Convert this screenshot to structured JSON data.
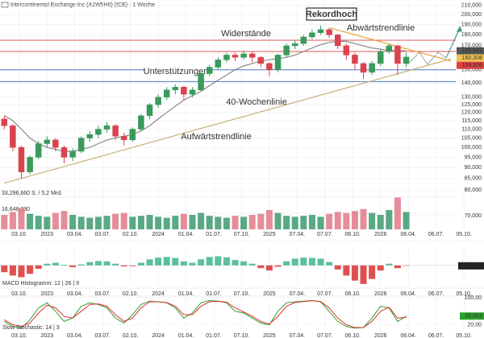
{
  "chart_data": {
    "type": "candlestick",
    "title": "Intercontinental Exchange Inc (A1W5H0) (ICE) - 1 Woche",
    "x": [
      0,
      4,
      8,
      12,
      16,
      20,
      24,
      28,
      32,
      36,
      40,
      44,
      48,
      52,
      56,
      60,
      64,
      68,
      72,
      76,
      80,
      84,
      88,
      92,
      96,
      100,
      104,
      108,
      112,
      116,
      120,
      124,
      128,
      132,
      136,
      140,
      144,
      148,
      152,
      156,
      160,
      164,
      168,
      172,
      176,
      180,
      184,
      188
    ],
    "open": [
      116000,
      112000,
      100000,
      88000,
      95000,
      102000,
      104000,
      100000,
      95000,
      98000,
      105000,
      107000,
      110000,
      112000,
      106000,
      104000,
      110000,
      118000,
      125000,
      130000,
      135000,
      137000,
      132000,
      135000,
      147000,
      152000,
      158000,
      162000,
      160000,
      163000,
      160000,
      155000,
      150000,
      162000,
      170000,
      172000,
      178000,
      182000,
      185000,
      180000,
      170000,
      162000,
      155000,
      148000,
      155000,
      165000,
      170000,
      155000
    ],
    "high": [
      118000,
      113000,
      101000,
      96000,
      103500,
      106000,
      105000,
      101000,
      99500,
      106000,
      109000,
      112000,
      114000,
      113000,
      108000,
      111000,
      119000,
      126000,
      132000,
      137000,
      139000,
      138000,
      137000,
      148000,
      154000,
      160000,
      164000,
      164000,
      166000,
      165000,
      161000,
      156000,
      163000,
      172000,
      175000,
      180000,
      185000,
      189000,
      187000,
      181000,
      172000,
      164000,
      156000,
      157000,
      167000,
      172000,
      171000,
      164000
    ],
    "low": [
      110000,
      98000,
      85000,
      87000,
      94000,
      100000,
      98000,
      92000,
      93000,
      97000,
      103000,
      105000,
      108000,
      104000,
      101000,
      103000,
      109000,
      116000,
      123000,
      128000,
      132000,
      128000,
      130000,
      134000,
      145000,
      150000,
      156000,
      157000,
      158000,
      156000,
      152000,
      145000,
      148000,
      160000,
      167000,
      170000,
      176000,
      180000,
      177000,
      167000,
      158000,
      150000,
      143000,
      146000,
      153000,
      163000,
      146000,
      152000
    ],
    "close": [
      112000,
      100000,
      88000,
      95000,
      102000,
      104000,
      100000,
      95000,
      98000,
      105000,
      107000,
      110000,
      112000,
      106000,
      104000,
      110000,
      118000,
      125000,
      130000,
      135000,
      137000,
      132000,
      135000,
      147000,
      152000,
      158000,
      162000,
      160000,
      163000,
      160000,
      155000,
      150000,
      162000,
      170000,
      172000,
      178000,
      182000,
      185000,
      180000,
      170000,
      162000,
      155000,
      148000,
      155000,
      165000,
      170000,
      155000,
      160308
    ],
    "up_color": "#3a9a5b",
    "down_color": "#d9434f",
    "log_scale": true,
    "grid": true,
    "xlim": [
      -2,
      224.4
    ],
    "xticks": [
      {
        "value": 7,
        "label": "03.10."
      },
      {
        "value": 20,
        "label": "2023"
      },
      {
        "value": 33,
        "label": "03.04."
      },
      {
        "value": 46,
        "label": "03.07."
      },
      {
        "value": 59,
        "label": "02.10."
      },
      {
        "value": 72,
        "label": "2024"
      },
      {
        "value": 85,
        "label": "01.04."
      },
      {
        "value": 98,
        "label": "01.07."
      },
      {
        "value": 111,
        "label": "07.10."
      },
      {
        "value": 124,
        "label": "2025"
      },
      {
        "value": 137,
        "label": "07.04."
      },
      {
        "value": 150,
        "label": "07.07."
      },
      {
        "value": 163,
        "label": "06.10."
      },
      {
        "value": 176,
        "label": "2026"
      },
      {
        "value": 189,
        "label": "06.04."
      },
      {
        "value": 202,
        "label": "06.07."
      },
      {
        "value": 215,
        "label": "05.10."
      }
    ],
    "ylim": [
      68000,
      215000
    ],
    "yticks": [
      {
        "value": 210000,
        "label": "210,000"
      },
      {
        "value": 200000,
        "label": "200,000"
      },
      {
        "value": 190000,
        "label": "190,000"
      },
      {
        "value": 180000,
        "label": "180,000"
      },
      {
        "value": 170000,
        "label": "170,000"
      },
      {
        "value": 150000,
        "label": "150,000"
      },
      {
        "value": 140000,
        "label": "140,000"
      },
      {
        "value": 130000,
        "label": "130,000"
      },
      {
        "value": 125000,
        "label": "125,000"
      },
      {
        "value": 120000,
        "label": "120,000"
      },
      {
        "value": 115000,
        "label": "115,000"
      },
      {
        "value": 110000,
        "label": "110,000"
      },
      {
        "value": 105000,
        "label": "105,000"
      },
      {
        "value": 100000,
        "label": "100,000"
      },
      {
        "value": 95000,
        "label": "95,000"
      },
      {
        "value": 90000,
        "label": "90,000"
      },
      {
        "value": 85000,
        "label": "85,000"
      },
      {
        "value": 80000,
        "label": "80,000"
      },
      {
        "value": 70000,
        "label": "70,000"
      }
    ],
    "series": [
      {
        "name": "40-Wochenlinie",
        "color": "#8a8a8a",
        "values": [
          118000,
          115000,
          110000,
          105000,
          102000,
          100000,
          99000,
          98000,
          98000,
          99000,
          100000,
          102000,
          104000,
          105000,
          106000,
          107000,
          109000,
          112000,
          116000,
          120000,
          124000,
          128000,
          131000,
          134000,
          138000,
          142000,
          146000,
          150000,
          153000,
          155000,
          157000,
          158000,
          159000,
          160000,
          162000,
          165000,
          168000,
          171000,
          173000,
          174000,
          174000,
          172000,
          170000,
          168000,
          167000,
          166000,
          165800,
          165561
        ]
      }
    ],
    "levels": [
      {
        "name": "Widerstände",
        "color": "#e05555",
        "values": [
          175000,
          165000
        ]
      },
      {
        "name": "Unterstützungen",
        "color": "#4a78c8",
        "values": [
          150000,
          141000
        ]
      }
    ],
    "trendlines": [
      {
        "name": "Aufwärtstrendlinie",
        "color": "#c8b07a",
        "x": [
          0,
          209
        ],
        "y": [
          83000,
          158800
        ]
      },
      {
        "name": "Abwärtstrendlinie",
        "color": "#e8a030",
        "x": [
          152.7,
          209
        ],
        "y": [
          186400,
          157000
        ]
      }
    ],
    "annotations": [
      {
        "text": "Rekordhoch"
      }
    ],
    "price_markers": [
      {
        "value": 165561,
        "label": "165,561",
        "color": "#555555"
      },
      {
        "value": 160308,
        "label": "160,308",
        "color": "#f2c14e"
      },
      {
        "value": 159806,
        "label": "159,806",
        "color": "#e04040"
      }
    ],
    "volume": {
      "values": [
        15000000,
        18000000,
        22000000,
        16000000,
        14000000,
        13000000,
        17000000,
        19000000,
        15000000,
        13000000,
        12000000,
        13000000,
        14000000,
        16000000,
        17000000,
        13000000,
        14000000,
        15000000,
        13000000,
        12000000,
        14000000,
        16000000,
        15000000,
        17000000,
        14000000,
        13000000,
        12000000,
        14000000,
        13000000,
        15000000,
        16000000,
        20000000,
        17000000,
        14000000,
        13000000,
        14000000,
        15000000,
        13000000,
        16000000,
        18000000,
        17000000,
        19000000,
        21000000,
        17000000,
        15000000,
        20000000,
        33000000,
        18000000
      ],
      "ylim": [
        0,
        33296660
      ],
      "yticks": [
        {
          "value": 33296660,
          "label": "33,296,660 S. / 5,2 Mrd."
        },
        {
          "value": 16648330,
          "label": "16,648,330"
        }
      ],
      "up_color": "#3c9a6e",
      "down_color": "#e07a88"
    },
    "macd": {
      "title": "MACD Histogramm: 12 | 26 | 9",
      "values": [
        -2,
        -3,
        -3.5,
        -2.5,
        -1,
        0.5,
        0.8,
        0.2,
        -0.5,
        0.3,
        1,
        1.3,
        1.2,
        0.5,
        -0.3,
        -0.2,
        0.8,
        1.8,
        2.3,
        2.5,
        2.2,
        1.2,
        0.8,
        1.8,
        2.5,
        2.7,
        2.4,
        1.6,
        1.2,
        0.5,
        -0.8,
        -1.5,
        -0.4,
        1.2,
        2,
        2.3,
        2.2,
        2,
        1,
        -1.2,
        -3,
        -4.5,
        -5.5,
        -4,
        -1.5,
        0.5,
        -0.8,
        -0.12311
      ],
      "ylim": [
        -6,
        4
      ],
      "up_color": "#5bbfa0",
      "down_color": "#e05050",
      "marker": {
        "value": -0.12311,
        "label": "-0,12311",
        "color": "#222222"
      }
    },
    "stochastic": {
      "title": "Slow Stochastic: 14 | 3",
      "ylim": [
        0,
        100
      ],
      "yticks": [
        {
          "value": 100,
          "label": "100,00"
        },
        {
          "value": 20,
          "label": "20,00"
        }
      ],
      "series": [
        {
          "color": "#2ca02c",
          "values": [
            30,
            15,
            10,
            35,
            70,
            85,
            60,
            30,
            40,
            75,
            85,
            80,
            70,
            40,
            25,
            50,
            80,
            90,
            88,
            85,
            70,
            40,
            55,
            85,
            92,
            90,
            85,
            60,
            55,
            40,
            25,
            20,
            60,
            85,
            88,
            90,
            92,
            88,
            60,
            30,
            15,
            10,
            12,
            40,
            75,
            70,
            30,
            45.803
          ]
        },
        {
          "color": "#e03030",
          "values": [
            35,
            20,
            15,
            25,
            55,
            78,
            70,
            45,
            40,
            60,
            80,
            82,
            75,
            50,
            30,
            40,
            70,
            88,
            88,
            86,
            75,
            50,
            50,
            75,
            88,
            90,
            87,
            70,
            58,
            45,
            30,
            22,
            45,
            75,
            86,
            89,
            91,
            89,
            70,
            40,
            20,
            12,
            12,
            30,
            60,
            72,
            40,
            42
          ]
        }
      ],
      "marker": {
        "value": 45.803,
        "label": "45,803",
        "color": "#2ca02c"
      }
    }
  }
}
